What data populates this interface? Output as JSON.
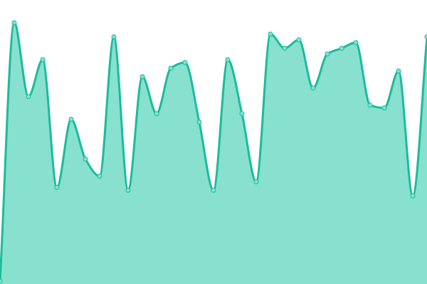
{
  "chart_data": {
    "type": "area",
    "title": "",
    "xlabel": "",
    "ylabel": "",
    "x": [
      0,
      1,
      2,
      3,
      4,
      5,
      6,
      7,
      8,
      9,
      10,
      11,
      12,
      13,
      14,
      15,
      16,
      17,
      18,
      19,
      20,
      21,
      22,
      23,
      24,
      25,
      26,
      27,
      28,
      29,
      30
    ],
    "values": [
      1,
      92,
      66,
      79,
      34,
      58,
      44,
      38,
      87,
      33,
      73,
      60,
      76,
      78,
      57,
      33,
      79,
      60,
      36,
      88,
      83,
      86,
      69,
      81,
      83,
      85,
      63,
      62,
      75,
      31,
      87
    ],
    "ylim": [
      0,
      100
    ],
    "grid": false,
    "axes_visible": false,
    "curve": "monotone",
    "colors": {
      "fill": "#88e0cf",
      "stroke": "#1abc9c",
      "marker_fill": "#88e0cf",
      "background": "#ffffff"
    }
  }
}
